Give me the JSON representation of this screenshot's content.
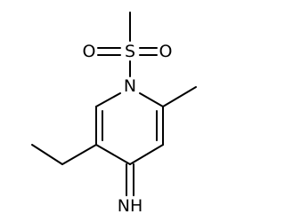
{
  "atoms": {
    "sulfur": "S",
    "oxygen_left": "O",
    "oxygen_right": "O",
    "ring_nitrogen": "N",
    "imine": "NH"
  }
}
